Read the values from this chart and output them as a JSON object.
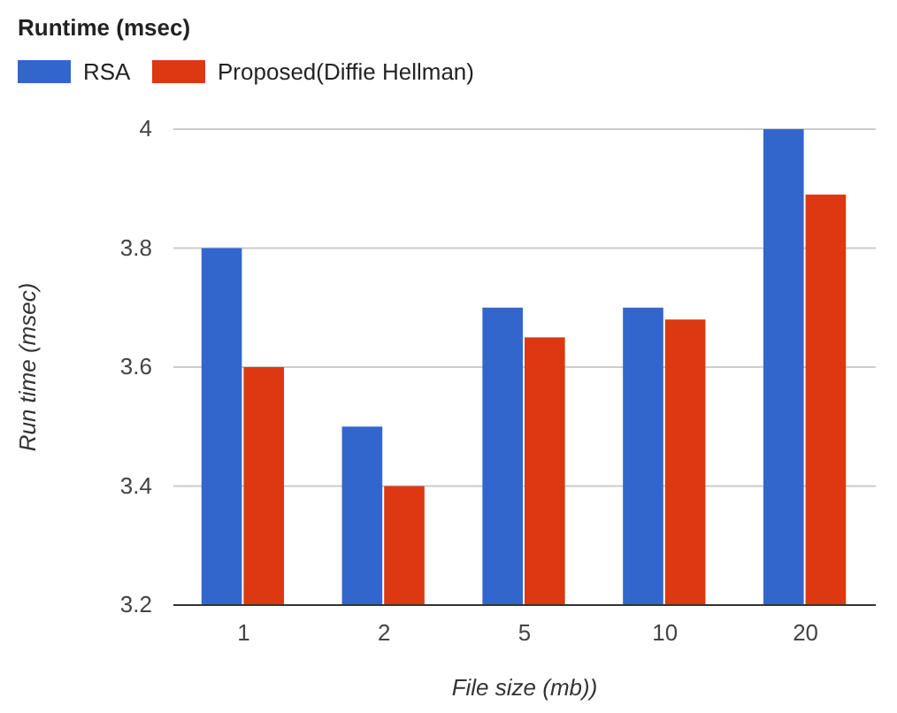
{
  "chart_data": {
    "type": "bar",
    "title": "Runtime (msec)",
    "xlabel": "File size (mb))",
    "ylabel": "Run time (msec)",
    "categories": [
      "1",
      "2",
      "5",
      "10",
      "20"
    ],
    "series": [
      {
        "name": "RSA",
        "color": "#3366cc",
        "values": [
          3.8,
          3.5,
          3.7,
          3.7,
          4.0
        ]
      },
      {
        "name": "Proposed(Diffie Hellman)",
        "color": "#dc3912",
        "values": [
          3.6,
          3.4,
          3.65,
          3.68,
          3.89
        ]
      }
    ],
    "ylim": [
      3.2,
      4
    ],
    "yticks": [
      3.2,
      3.4,
      3.6,
      3.8,
      4
    ],
    "grid": "y",
    "legend": "top left"
  }
}
